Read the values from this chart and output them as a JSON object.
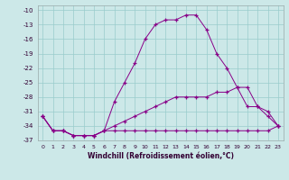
{
  "xlabel": "Windchill (Refroidissement éolien,°C)",
  "x": [
    0,
    1,
    2,
    3,
    4,
    5,
    6,
    7,
    8,
    9,
    10,
    11,
    12,
    13,
    14,
    15,
    16,
    17,
    18,
    19,
    20,
    21,
    22,
    23
  ],
  "line1": [
    -32,
    -35,
    -35,
    -36,
    -36,
    -36,
    -35,
    -35,
    -35,
    -35,
    -35,
    -35,
    -35,
    -35,
    -35,
    -35,
    -35,
    -35,
    -35,
    -35,
    -35,
    -35,
    -35,
    -34
  ],
  "line2": [
    -32,
    -35,
    -35,
    -36,
    -36,
    -36,
    -35,
    -34,
    -33,
    -32,
    -31,
    -30,
    -29,
    -28,
    -28,
    -28,
    -28,
    -27,
    -27,
    -26,
    -30,
    -30,
    -31,
    -34
  ],
  "line3": [
    -32,
    -35,
    -35,
    -36,
    -36,
    -36,
    -35,
    -29,
    -25,
    -21,
    -16,
    -13,
    -12,
    -12,
    -11,
    -11,
    -14,
    -19,
    -22,
    -26,
    -26,
    -30,
    -32,
    -34
  ],
  "line_color": "#880088",
  "bg_color": "#cce8e8",
  "grid_color": "#99cccc",
  "ylim": [
    -37,
    -9
  ],
  "yticks": [
    -10,
    -13,
    -16,
    -19,
    -22,
    -25,
    -28,
    -31,
    -34,
    -37
  ],
  "figwidth": 3.2,
  "figheight": 2.0,
  "dpi": 100
}
